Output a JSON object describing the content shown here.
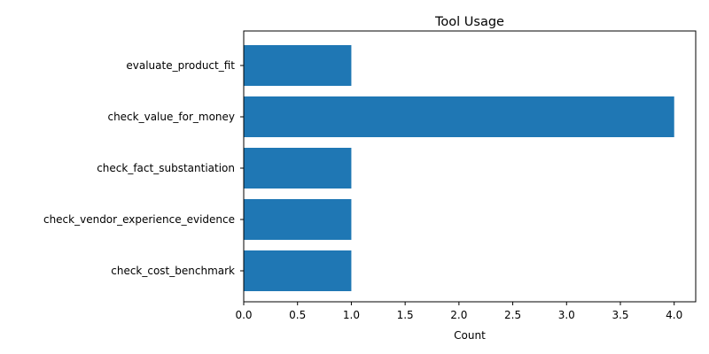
{
  "chart_data": {
    "type": "bar",
    "orientation": "horizontal",
    "title": "Tool Usage",
    "xlabel": "Count",
    "ylabel": "",
    "categories": [
      "evaluate_product_fit",
      "check_value_for_money",
      "check_fact_substantiation",
      "check_vendor_experience_evidence",
      "check_cost_benchmark"
    ],
    "values": [
      1,
      4,
      1,
      1,
      1
    ],
    "xlim": [
      0,
      4.2
    ],
    "xticks": [
      0.0,
      0.5,
      1.0,
      1.5,
      2.0,
      2.5,
      3.0,
      3.5,
      4.0
    ],
    "xtick_labels": [
      "0.0",
      "0.5",
      "1.0",
      "1.5",
      "2.0",
      "2.5",
      "3.0",
      "3.5",
      "4.0"
    ],
    "bar_color": "#1f77b4",
    "grid": false,
    "legend": "none"
  }
}
